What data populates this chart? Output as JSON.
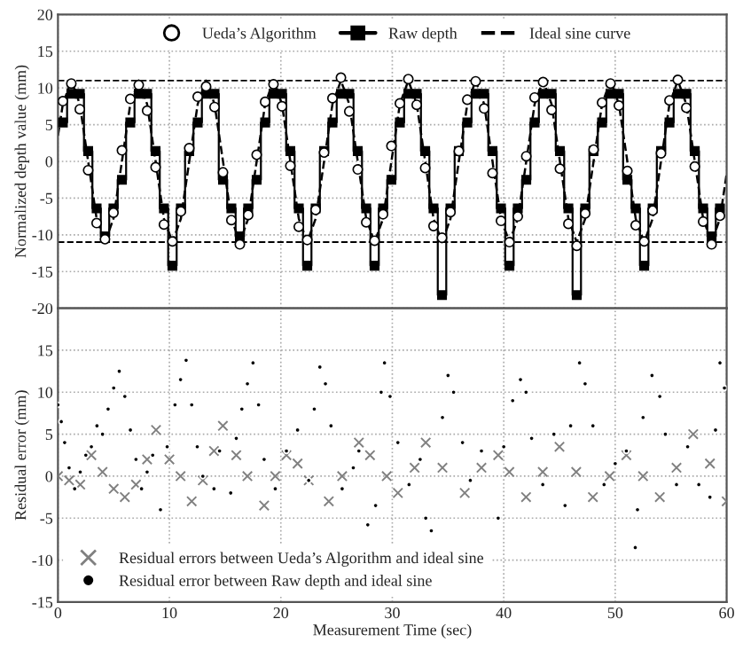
{
  "chart_data": [
    {
      "type": "line",
      "ylabel": "Normalized depth value (mm)",
      "xlim": [
        0,
        60
      ],
      "xticks": [
        0,
        10,
        20,
        30,
        40,
        50,
        60
      ],
      "ylim": [
        -20,
        20
      ],
      "yticks": [
        -20,
        -15,
        -10,
        -5,
        0,
        5,
        10,
        15,
        20
      ],
      "tick_labels": "y",
      "grid": true,
      "legend": "top",
      "ref_lines": [
        {
          "axis": "y",
          "value": 11,
          "color": "#000000",
          "line_style": "dashed"
        },
        {
          "axis": "y",
          "value": -11,
          "color": "#000000",
          "line_style": "dashed"
        }
      ],
      "x": [
        0.44,
        1.2,
        1.96,
        2.71,
        3.47,
        4.22,
        4.98,
        5.74,
        6.49,
        7.25,
        8.0,
        8.76,
        9.51,
        10.27,
        11.03,
        11.78,
        12.54,
        13.29,
        14.05,
        14.81,
        15.56,
        16.32,
        17.07,
        17.83,
        18.59,
        19.34,
        20.1,
        20.85,
        21.61,
        22.37,
        23.12,
        23.88,
        24.63,
        25.39,
        26.14,
        26.9,
        27.66,
        28.41,
        29.17,
        29.92,
        30.68,
        31.44,
        32.19,
        32.95,
        33.7,
        34.46,
        35.22,
        35.97,
        36.73,
        37.48,
        38.24,
        38.99,
        39.75,
        40.51,
        41.26,
        42.02,
        42.77,
        43.53,
        44.29,
        45.04,
        45.8,
        46.55,
        47.31,
        48.06,
        48.82,
        49.58,
        50.33,
        51.09,
        51.84,
        52.6,
        53.36,
        54.11,
        54.87,
        55.62,
        56.38,
        57.14,
        57.89,
        58.65,
        59.4
      ],
      "series": [
        {
          "name": "Ueda’s Algorithm",
          "type": "scatter",
          "marker": "circle",
          "color": "#000000",
          "values": [
            8.2,
            10.6,
            7.1,
            -1.2,
            -8.4,
            -10.6,
            -7.0,
            1.5,
            8.5,
            10.4,
            6.9,
            -0.8,
            -8.6,
            -10.9,
            -6.8,
            1.8,
            8.8,
            10.2,
            7.4,
            -1.5,
            -8.0,
            -11.3,
            -7.3,
            0.9,
            8.1,
            10.5,
            7.5,
            -0.6,
            -8.9,
            -10.7,
            -6.6,
            1.2,
            8.6,
            11.4,
            6.8,
            -1.1,
            -8.3,
            -10.8,
            -7.2,
            2.1,
            7.9,
            11.2,
            7.7,
            -0.9,
            -8.8,
            -10.4,
            -6.9,
            1.4,
            8.4,
            10.9,
            7.2,
            -1.6,
            -8.1,
            -11.0,
            -7.5,
            0.7,
            8.7,
            10.8,
            7.0,
            -1.0,
            -8.5,
            -11.5,
            -7.1,
            1.6,
            8.0,
            10.6,
            7.6,
            -1.3,
            -8.7,
            -10.9,
            -6.7,
            1.1,
            8.3,
            11.1,
            7.3,
            -0.7,
            -8.2,
            -11.3,
            -7.4
          ]
        },
        {
          "name": "Raw depth",
          "type": "step",
          "marker": "square",
          "color": "#000000",
          "values": [
            5.3,
            9.2,
            9.2,
            1.4,
            -6.4,
            -10.2,
            -6.4,
            -2.5,
            5.3,
            9.2,
            9.2,
            1.4,
            -6.4,
            -14.2,
            -6.4,
            1.4,
            5.3,
            9.2,
            9.2,
            -2.5,
            -6.4,
            -10.2,
            -6.4,
            -2.5,
            5.3,
            9.2,
            9.2,
            1.4,
            -6.4,
            -14.2,
            -6.4,
            1.4,
            5.3,
            9.2,
            9.2,
            1.4,
            -6.4,
            -14.2,
            -6.4,
            -2.5,
            5.3,
            9.2,
            9.2,
            1.4,
            -6.4,
            -18.2,
            -6.4,
            1.4,
            5.3,
            9.2,
            9.2,
            1.4,
            -6.4,
            -14.2,
            -6.4,
            -2.5,
            5.3,
            9.2,
            9.2,
            1.4,
            -6.4,
            -18.2,
            -6.4,
            1.4,
            5.3,
            9.2,
            9.2,
            -2.5,
            -6.4,
            -14.2,
            -6.4,
            1.4,
            5.3,
            9.2,
            9.2,
            1.4,
            -6.4,
            -10.2,
            -6.4
          ]
        },
        {
          "name": "Ideal sine curve",
          "type": "line",
          "marker": "none",
          "line_style": "dashed",
          "color": "#000000",
          "x": [
            0,
            0.44,
            1.2,
            1.96,
            2.71,
            3.47,
            4.22,
            4.98,
            5.74,
            6.49,
            7.25,
            8.0,
            8.76,
            9.51,
            10.27,
            11.03,
            11.78,
            12.54,
            13.29,
            14.05,
            14.81,
            15.56,
            16.32,
            17.07,
            17.83,
            18.59,
            19.34,
            20.1,
            20.85,
            21.61,
            22.37,
            23.12,
            23.88,
            24.63,
            25.39,
            26.14,
            26.9,
            27.66,
            28.41,
            29.17,
            29.92,
            30.68,
            31.44,
            32.19,
            32.95,
            33.7,
            34.46,
            35.22,
            35.97,
            36.73,
            37.48,
            38.24,
            38.99,
            39.75,
            40.51,
            41.26,
            42.02,
            42.77,
            43.53,
            44.29,
            45.04,
            45.8,
            46.55,
            47.31,
            48.06,
            48.82,
            49.58,
            50.33,
            51.09,
            51.84,
            52.6,
            53.36,
            54.11,
            54.87,
            55.62,
            56.38,
            57.14,
            57.89,
            58.65,
            59.4,
            60
          ],
          "values": [
            3.5,
            7.8,
            11,
            7.8,
            0,
            -7.8,
            -11,
            -7.8,
            0,
            7.8,
            11,
            7.8,
            0,
            -7.8,
            -11,
            -7.8,
            0,
            7.8,
            11,
            7.8,
            0,
            -7.8,
            -11,
            -7.8,
            0,
            7.8,
            11,
            7.8,
            0,
            -7.8,
            -11,
            -7.8,
            0,
            7.8,
            11,
            7.8,
            0,
            -7.8,
            -11,
            -7.8,
            0,
            7.8,
            11,
            7.8,
            0,
            -7.8,
            -11,
            -7.8,
            0,
            7.8,
            11,
            7.8,
            0,
            -7.8,
            -11,
            -7.8,
            0,
            7.8,
            11,
            7.8,
            0,
            -7.8,
            -11,
            -7.8,
            0,
            7.8,
            11,
            7.8,
            0,
            -7.8,
            -11,
            -7.8,
            0,
            7.8,
            11,
            7.8,
            0,
            -7.8,
            -11,
            -7.8,
            -1.7
          ]
        }
      ]
    },
    {
      "type": "scatter",
      "xlabel": "Measurement Time (sec)",
      "ylabel": "Residual error (mm)",
      "xlim": [
        0,
        60
      ],
      "xticks": [
        0,
        10,
        20,
        30,
        40,
        50,
        60
      ],
      "ylim": [
        -15,
        20
      ],
      "yticks": [
        -15,
        -10,
        -5,
        0,
        5,
        10,
        15
      ],
      "grid": true,
      "legend": "bottom left",
      "series": [
        {
          "name": "Residual errors between Ueda’s Algorithm and ideal sine",
          "marker": "cross",
          "color": "#808080",
          "x": [
            0,
            1,
            2,
            3,
            4,
            5,
            6,
            7,
            8,
            8.8,
            10,
            11,
            12,
            13,
            14,
            14.8,
            16,
            17,
            18.5,
            19.5,
            20.5,
            21.5,
            22.5,
            24.3,
            25.5,
            27,
            28,
            29.5,
            30.5,
            32,
            33,
            34.5,
            36.5,
            38,
            39.5,
            40.5,
            42,
            43.5,
            45,
            46.5,
            48,
            49.5,
            51,
            52.5,
            54,
            55.5,
            57,
            58.5,
            60
          ],
          "values": [
            0,
            -0.5,
            -1,
            2.5,
            0.5,
            -1.5,
            -2.5,
            -1,
            2,
            5.5,
            2,
            0,
            -3,
            -0.5,
            3,
            6,
            2.5,
            0,
            -3.5,
            0,
            2.5,
            1.5,
            -0.5,
            -3,
            0,
            4,
            2.5,
            0,
            -2,
            1,
            4,
            1,
            -2,
            1,
            2.5,
            0.5,
            -2.5,
            0.5,
            3.5,
            0.5,
            -2.5,
            0,
            2.5,
            0,
            -2.5,
            1,
            5,
            1.5,
            -3
          ]
        },
        {
          "name": "Residual error between Raw depth and ideal sine",
          "marker": "circle",
          "color": "#000000",
          "x": [
            0,
            0.3,
            0.6,
            1,
            1.5,
            2,
            2.5,
            3,
            3.5,
            4,
            4.5,
            5,
            5.5,
            6,
            6.5,
            7,
            7.5,
            8,
            8.5,
            9.2,
            9.8,
            10.5,
            11,
            11.5,
            12,
            12.5,
            13,
            14,
            14.5,
            15.5,
            16,
            16.5,
            17,
            17.5,
            18,
            18.5,
            19.5,
            20.5,
            21.5,
            22.5,
            23,
            23.5,
            24,
            24.5,
            25.5,
            26.5,
            27,
            27.8,
            28.5,
            29,
            29.3,
            29.8,
            30.5,
            31.5,
            32.5,
            33,
            33.5,
            34.5,
            35,
            35.5,
            36.3,
            37,
            38,
            39.5,
            40,
            40.8,
            41.5,
            42,
            42.5,
            43.5,
            44.5,
            45.5,
            46,
            46.8,
            47.3,
            48,
            49,
            50,
            51,
            51.8,
            52,
            52.5,
            53.3,
            54,
            54.5,
            55.5,
            56.5,
            57.5,
            58.5,
            59,
            59.4,
            59.8
          ],
          "values": [
            8.5,
            6.5,
            4,
            1,
            -1.5,
            0.5,
            2.5,
            3.5,
            6,
            5,
            8,
            10.5,
            12.5,
            9.5,
            5.5,
            2,
            -1.5,
            0.5,
            2.5,
            -4,
            3.5,
            8.5,
            11.5,
            13.8,
            8.5,
            3.5,
            0,
            -1.5,
            3,
            -2,
            4.5,
            8,
            11,
            13.5,
            8.5,
            2,
            -1.5,
            3,
            5.5,
            -0.5,
            8,
            13,
            11,
            6,
            -1.5,
            1,
            3,
            -5.8,
            -3.5,
            10,
            13.5,
            9.5,
            4,
            -1,
            2,
            -5,
            -6.5,
            7,
            12,
            10,
            4,
            -0.5,
            3,
            -5,
            3.5,
            9,
            11.5,
            10,
            4.5,
            -1,
            5,
            -3.5,
            6,
            13.5,
            11,
            6,
            -1,
            1.5,
            3,
            -8.5,
            -4,
            7,
            12,
            9.5,
            5,
            -1,
            3.5,
            -1,
            -2.5,
            5.5,
            13.5,
            10.5
          ]
        }
      ]
    }
  ]
}
